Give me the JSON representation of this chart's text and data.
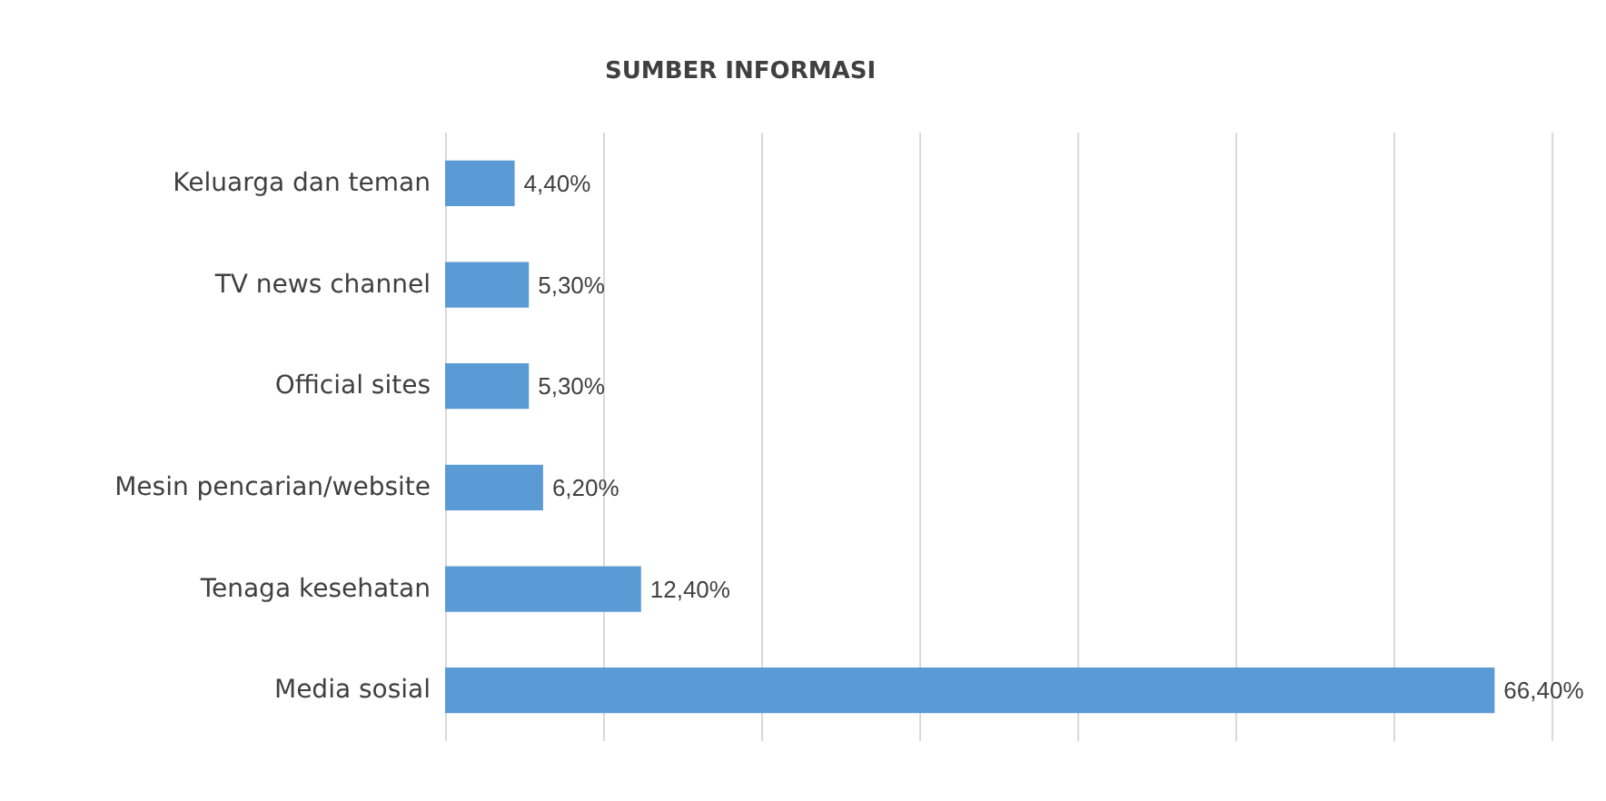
{
  "chart_data": {
    "type": "bar",
    "title": "SUMBER INFORMASI",
    "orientation": "horizontal",
    "categories": [
      "Keluarga dan teman",
      "TV news channel",
      "Official sites",
      "Mesin pencarian/website",
      "Tenaga kesehatan",
      "Media sosial"
    ],
    "values": [
      4.4,
      5.3,
      5.3,
      6.2,
      12.4,
      66.4
    ],
    "value_labels": [
      "4,40%",
      "5,30%",
      "5,30%",
      "6,20%",
      "12,40%",
      "66,40%"
    ],
    "color": "#5b9bd5",
    "xlim": [
      0,
      70
    ],
    "xticks": [
      {
        "value": 0,
        "label": null
      },
      {
        "value": 10,
        "label": null
      },
      {
        "value": 20,
        "label": null
      },
      {
        "value": 30,
        "label": null
      },
      {
        "value": 40,
        "label": null
      },
      {
        "value": 50,
        "label": null
      },
      {
        "value": 60,
        "label": null
      },
      {
        "value": 70,
        "label": null
      }
    ],
    "tick_labels": "y",
    "grid": "x"
  }
}
